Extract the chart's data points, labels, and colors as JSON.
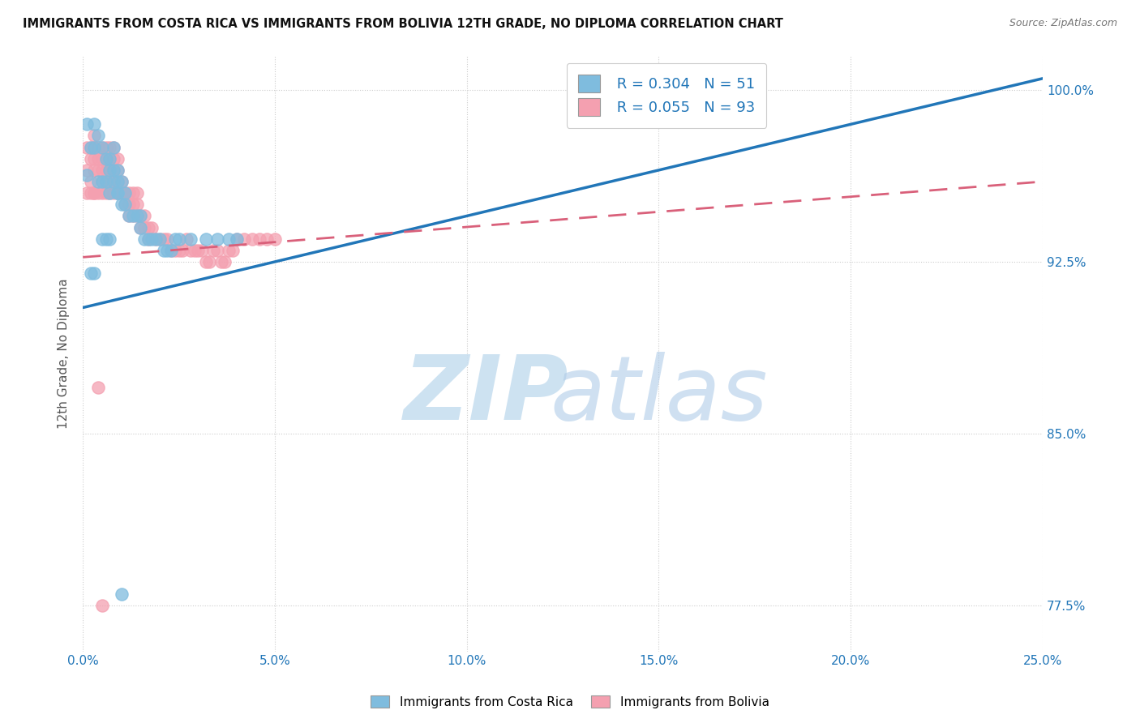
{
  "title": "IMMIGRANTS FROM COSTA RICA VS IMMIGRANTS FROM BOLIVIA 12TH GRADE, NO DIPLOMA CORRELATION CHART",
  "source": "Source: ZipAtlas.com",
  "xlim": [
    0.0,
    0.25
  ],
  "ylim": [
    0.755,
    1.015
  ],
  "x_ticks": [
    0.0,
    0.05,
    0.1,
    0.15,
    0.2,
    0.25
  ],
  "x_tick_labels": [
    "0.0%",
    "5.0%",
    "10.0%",
    "15.0%",
    "20.0%",
    "25.0%"
  ],
  "y_ticks": [
    0.775,
    0.85,
    0.925,
    1.0
  ],
  "y_tick_labels": [
    "77.5%",
    "85.0%",
    "92.5%",
    "100.0%"
  ],
  "legend_r1": "R = 0.304",
  "legend_n1": "N = 51",
  "legend_r2": "R = 0.055",
  "legend_n2": "N = 93",
  "color_costa_rica": "#7fbcde",
  "color_bolivia": "#f4a0b0",
  "trendline_costa_rica": "#2176b8",
  "trendline_bolivia": "#d9607a",
  "ylabel_label": "12th Grade, No Diploma",
  "legend_label1": "Immigrants from Costa Rica",
  "legend_label2": "Immigrants from Bolivia",
  "costa_rica_x": [
    0.001,
    0.001,
    0.002,
    0.003,
    0.003,
    0.004,
    0.004,
    0.005,
    0.005,
    0.006,
    0.006,
    0.007,
    0.007,
    0.007,
    0.008,
    0.008,
    0.008,
    0.009,
    0.009,
    0.009,
    0.009,
    0.01,
    0.01,
    0.011,
    0.011,
    0.012,
    0.013,
    0.014,
    0.015,
    0.015,
    0.016,
    0.017,
    0.018,
    0.019,
    0.02,
    0.021,
    0.022,
    0.023,
    0.024,
    0.025,
    0.028,
    0.032,
    0.035,
    0.038,
    0.04,
    0.002,
    0.003,
    0.005,
    0.006,
    0.007,
    0.01
  ],
  "costa_rica_y": [
    0.963,
    0.985,
    0.975,
    0.985,
    0.975,
    0.98,
    0.96,
    0.975,
    0.96,
    0.97,
    0.96,
    0.965,
    0.97,
    0.955,
    0.96,
    0.965,
    0.975,
    0.955,
    0.96,
    0.965,
    0.955,
    0.95,
    0.96,
    0.95,
    0.955,
    0.945,
    0.945,
    0.945,
    0.94,
    0.945,
    0.935,
    0.935,
    0.935,
    0.935,
    0.935,
    0.93,
    0.93,
    0.93,
    0.935,
    0.935,
    0.935,
    0.935,
    0.935,
    0.935,
    0.935,
    0.92,
    0.92,
    0.935,
    0.935,
    0.935,
    0.78
  ],
  "bolivia_x": [
    0.001,
    0.001,
    0.002,
    0.002,
    0.002,
    0.003,
    0.003,
    0.003,
    0.003,
    0.004,
    0.004,
    0.004,
    0.005,
    0.005,
    0.005,
    0.005,
    0.006,
    0.006,
    0.006,
    0.006,
    0.007,
    0.007,
    0.007,
    0.007,
    0.008,
    0.008,
    0.008,
    0.008,
    0.009,
    0.009,
    0.009,
    0.009,
    0.01,
    0.01,
    0.011,
    0.011,
    0.012,
    0.012,
    0.013,
    0.013,
    0.014,
    0.014,
    0.015,
    0.015,
    0.016,
    0.016,
    0.017,
    0.017,
    0.018,
    0.019,
    0.02,
    0.021,
    0.022,
    0.023,
    0.024,
    0.025,
    0.026,
    0.027,
    0.028,
    0.029,
    0.03,
    0.031,
    0.032,
    0.033,
    0.034,
    0.035,
    0.036,
    0.037,
    0.038,
    0.039,
    0.04,
    0.042,
    0.044,
    0.046,
    0.048,
    0.05,
    0.001,
    0.002,
    0.003,
    0.003,
    0.004,
    0.005,
    0.006,
    0.007,
    0.008,
    0.009,
    0.01,
    0.011,
    0.012,
    0.013,
    0.014,
    0.004,
    0.005
  ],
  "bolivia_y": [
    0.975,
    0.965,
    0.97,
    0.975,
    0.96,
    0.97,
    0.965,
    0.975,
    0.98,
    0.965,
    0.97,
    0.975,
    0.965,
    0.97,
    0.975,
    0.96,
    0.96,
    0.965,
    0.97,
    0.975,
    0.96,
    0.965,
    0.97,
    0.975,
    0.96,
    0.965,
    0.97,
    0.975,
    0.955,
    0.96,
    0.965,
    0.97,
    0.955,
    0.96,
    0.95,
    0.955,
    0.945,
    0.95,
    0.945,
    0.95,
    0.945,
    0.95,
    0.94,
    0.945,
    0.94,
    0.945,
    0.935,
    0.94,
    0.94,
    0.935,
    0.935,
    0.935,
    0.935,
    0.93,
    0.93,
    0.93,
    0.93,
    0.935,
    0.93,
    0.93,
    0.93,
    0.93,
    0.925,
    0.925,
    0.93,
    0.93,
    0.925,
    0.925,
    0.93,
    0.93,
    0.935,
    0.935,
    0.935,
    0.935,
    0.935,
    0.935,
    0.955,
    0.955,
    0.955,
    0.955,
    0.955,
    0.955,
    0.955,
    0.955,
    0.955,
    0.955,
    0.955,
    0.955,
    0.955,
    0.955,
    0.955,
    0.87,
    0.775
  ],
  "cr_trend_x": [
    0.0,
    0.25
  ],
  "cr_trend_y": [
    0.905,
    1.005
  ],
  "bo_trend_x": [
    0.0,
    0.25
  ],
  "bo_trend_y": [
    0.927,
    0.96
  ]
}
